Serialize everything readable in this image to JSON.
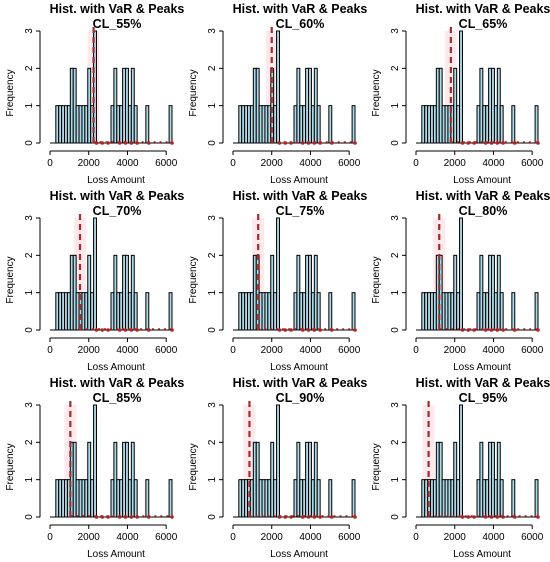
{
  "chart_data": {
    "type": "bar",
    "shared": {
      "title_line1": "Hist. with VaR & Peaks",
      "xlabel": "Loss Amount",
      "ylabel": "Frequency",
      "x_ticks": [
        "0",
        "2000",
        "4000",
        "6000"
      ],
      "x_tick_values": [
        0,
        2000,
        4000,
        6000
      ],
      "y_ticks": [
        "0",
        "1",
        "2",
        "3"
      ],
      "y_tick_values": [
        0,
        1,
        2,
        3
      ],
      "xlim": [
        0,
        6300
      ],
      "ylim": [
        0,
        3
      ],
      "bins": [
        {
          "x0": 300,
          "x1": 450,
          "count": 1
        },
        {
          "x0": 450,
          "x1": 600,
          "count": 1
        },
        {
          "x0": 600,
          "x1": 750,
          "count": 1
        },
        {
          "x0": 750,
          "x1": 900,
          "count": 1
        },
        {
          "x0": 900,
          "x1": 1050,
          "count": 1
        },
        {
          "x0": 1050,
          "x1": 1200,
          "count": 2
        },
        {
          "x0": 1200,
          "x1": 1350,
          "count": 2
        },
        {
          "x0": 1350,
          "x1": 1500,
          "count": 1
        },
        {
          "x0": 1500,
          "x1": 1650,
          "count": 1
        },
        {
          "x0": 1650,
          "x1": 1800,
          "count": 1
        },
        {
          "x0": 1800,
          "x1": 1950,
          "count": 1
        },
        {
          "x0": 1950,
          "x1": 2100,
          "count": 2
        },
        {
          "x0": 2100,
          "x1": 2250,
          "count": 1
        },
        {
          "x0": 2250,
          "x1": 2400,
          "count": 3
        },
        {
          "x0": 3150,
          "x1": 3300,
          "count": 1
        },
        {
          "x0": 3300,
          "x1": 3450,
          "count": 2
        },
        {
          "x0": 3450,
          "x1": 3600,
          "count": 1
        },
        {
          "x0": 3600,
          "x1": 3750,
          "count": 1
        },
        {
          "x0": 3750,
          "x1": 3900,
          "count": 2
        },
        {
          "x0": 3900,
          "x1": 4050,
          "count": 2
        },
        {
          "x0": 4050,
          "x1": 4200,
          "count": 1
        },
        {
          "x0": 4200,
          "x1": 4350,
          "count": 2
        },
        {
          "x0": 4350,
          "x1": 4500,
          "count": 1
        },
        {
          "x0": 4950,
          "x1": 5100,
          "count": 1
        },
        {
          "x0": 6150,
          "x1": 6300,
          "count": 1
        }
      ],
      "peak_points": [
        2400,
        2700,
        3000,
        3600,
        3900,
        4200,
        4500,
        5100,
        6300
      ],
      "bar_color": "#ADD8E6",
      "bar_border": "#000000",
      "var_line_color": "#A52A2A",
      "peak_color": "#B22222",
      "band_color": "#FFC0CB"
    },
    "panels": [
      {
        "title_line2": "CL_55%",
        "var": 2250
      },
      {
        "title_line2": "CL_60%",
        "var": 2000
      },
      {
        "title_line2": "CL_65%",
        "var": 1800
      },
      {
        "title_line2": "CL_70%",
        "var": 1550
      },
      {
        "title_line2": "CL_75%",
        "var": 1300
      },
      {
        "title_line2": "CL_80%",
        "var": 1200
      },
      {
        "title_line2": "CL_85%",
        "var": 1050
      },
      {
        "title_line2": "CL_90%",
        "var": 850
      },
      {
        "title_line2": "CL_95%",
        "var": 650
      }
    ]
  }
}
